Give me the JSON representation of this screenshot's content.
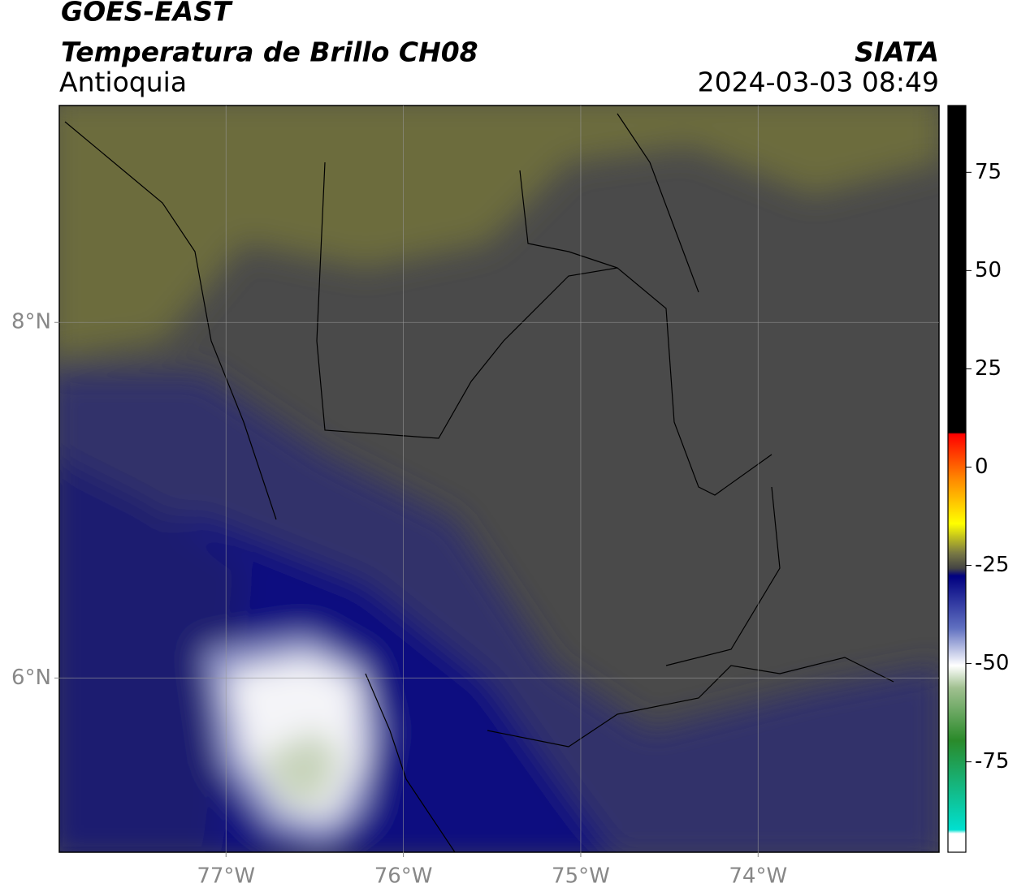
{
  "map": {
    "title": "GOES-EAST",
    "subtitle": "Temperatura de Brillo CH08",
    "region": "Antioquia",
    "source": "SIATA",
    "datetime": "2024-03-03 08:49",
    "xlim": [
      -77.94,
      -72.98
    ],
    "ylim": [
      5.02,
      9.22
    ],
    "xticks": [
      {
        "value": -77,
        "label": "77°W"
      },
      {
        "value": -76,
        "label": "76°W"
      },
      {
        "value": -75,
        "label": "75°W"
      },
      {
        "value": -74,
        "label": "74°W"
      }
    ],
    "yticks": [
      {
        "value": 8,
        "label": "8°N"
      },
      {
        "value": 6,
        "label": "6°N"
      }
    ],
    "grid": true,
    "colorbar": {
      "lim": [
        -98,
        92
      ],
      "ticks": [
        75,
        50,
        25,
        0,
        -25,
        -50,
        -75
      ]
    }
  }
}
